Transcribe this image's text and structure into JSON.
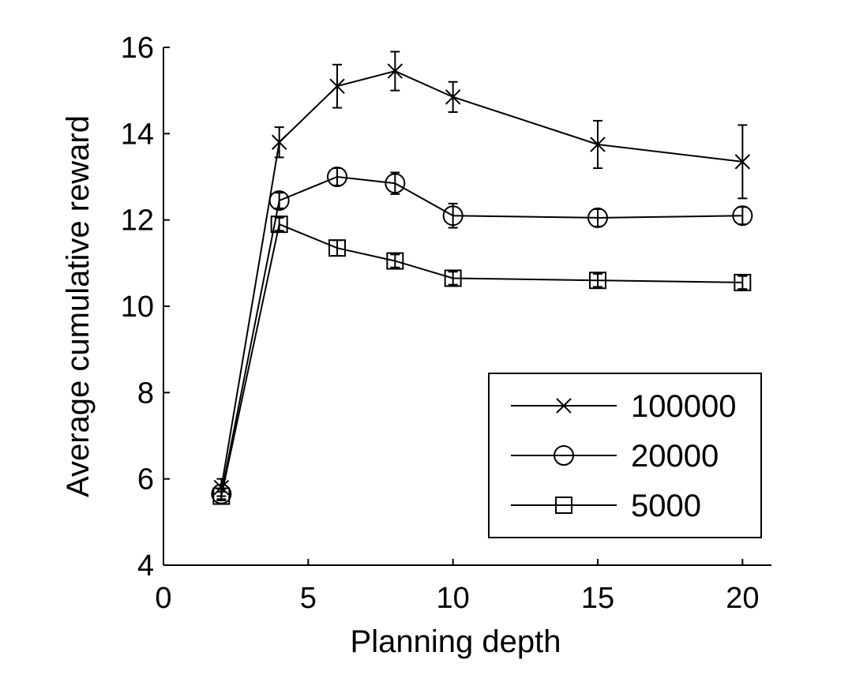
{
  "chart_data": {
    "type": "line",
    "title": "",
    "xlabel": "Planning depth",
    "ylabel": "Average cumulative reward",
    "xlim": [
      0,
      21
    ],
    "ylim": [
      4,
      16
    ],
    "xticks": [
      0,
      5,
      10,
      15,
      20
    ],
    "yticks": [
      4,
      6,
      8,
      10,
      12,
      14,
      16
    ],
    "grid": false,
    "legend_position": "bottom-right",
    "error_bars": true,
    "series": [
      {
        "name": "100000",
        "marker": "x",
        "x": [
          2,
          4,
          6,
          8,
          10,
          15,
          20
        ],
        "y": [
          5.8,
          13.8,
          15.1,
          15.45,
          14.85,
          13.75,
          13.35
        ],
        "err": [
          0.2,
          0.35,
          0.5,
          0.45,
          0.35,
          0.55,
          0.85
        ]
      },
      {
        "name": "20000",
        "marker": "o",
        "x": [
          2,
          4,
          6,
          8,
          10,
          15,
          20
        ],
        "y": [
          5.65,
          12.45,
          13.0,
          12.85,
          12.1,
          12.05,
          12.1
        ],
        "err": [
          0.12,
          0.18,
          0.2,
          0.25,
          0.28,
          0.2,
          0.2
        ]
      },
      {
        "name": "5000",
        "marker": "s",
        "x": [
          2,
          4,
          6,
          8,
          10,
          15,
          20
        ],
        "y": [
          5.6,
          11.9,
          11.35,
          11.05,
          10.65,
          10.6,
          10.55
        ],
        "err": [
          0.1,
          0.15,
          0.18,
          0.15,
          0.15,
          0.15,
          0.15
        ]
      }
    ]
  }
}
